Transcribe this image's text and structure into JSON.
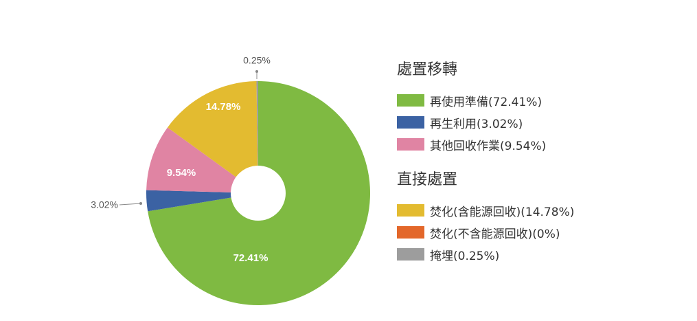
{
  "chart_data": {
    "type": "pie",
    "slices": [
      {
        "label": "再使用準備",
        "value": 72.41,
        "display": "72.41%",
        "color": "#7fba42",
        "group": "處置移轉"
      },
      {
        "label": "再生利用",
        "value": 3.02,
        "display": "3.02%",
        "color": "#3b62a3",
        "group": "處置移轉"
      },
      {
        "label": "其他回收作業",
        "value": 9.54,
        "display": "9.54%",
        "color": "#e084a3",
        "group": "處置移轉"
      },
      {
        "label": "焚化(含能源回收)",
        "value": 14.78,
        "display": "14.78%",
        "color": "#e3bb30",
        "group": "直接處置"
      },
      {
        "label": "焚化(不含能源回收)",
        "value": 0,
        "display": "0%",
        "color": "#e3672a",
        "group": "直接處置"
      },
      {
        "label": "掩埋",
        "value": 0.25,
        "display": "0.25%",
        "color": "#9d9d9d",
        "group": "直接處置"
      }
    ],
    "slice_order": [
      0,
      1,
      2,
      3,
      5
    ],
    "legend_placement": "right"
  },
  "legend": {
    "groups": [
      {
        "title": "處置移轉",
        "items": [
          {
            "text": "再使用準備(72.41%)",
            "color": "#7fba42"
          },
          {
            "text": "再生利用(3.02%)",
            "color": "#3b62a3"
          },
          {
            "text": "其他回收作業(9.54%)",
            "color": "#e084a3"
          }
        ]
      },
      {
        "title": "直接處置",
        "items": [
          {
            "text": "焚化(含能源回收)(14.78%)",
            "color": "#e3bb30"
          },
          {
            "text": "焚化(不含能源回收)(0%)",
            "color": "#e3672a"
          },
          {
            "text": "掩埋(0.25%)",
            "color": "#9d9d9d"
          }
        ]
      }
    ]
  }
}
